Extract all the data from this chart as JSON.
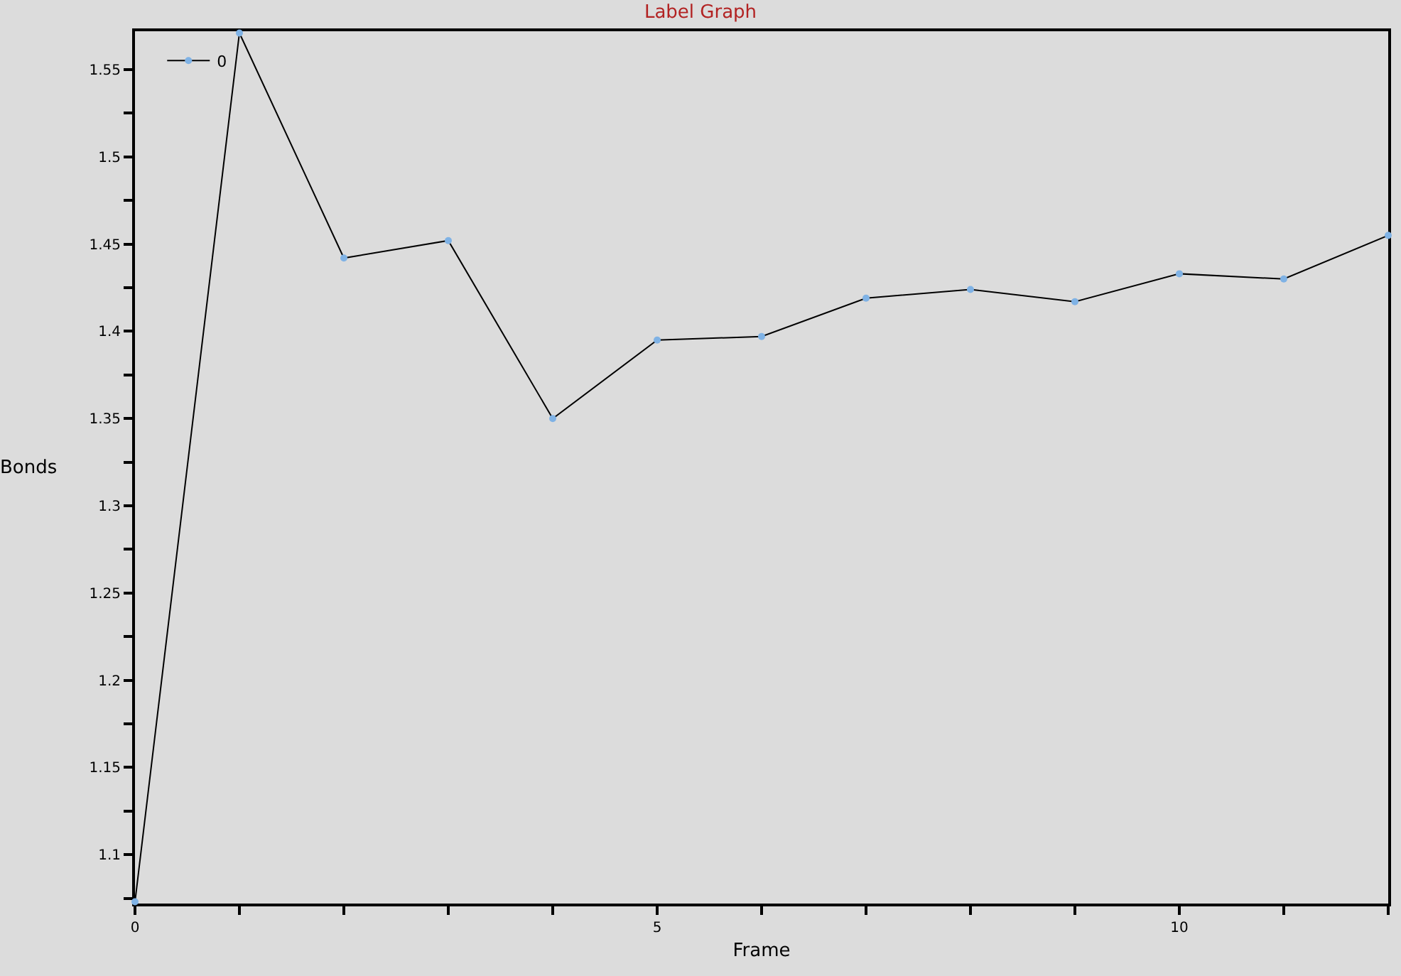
{
  "chart_data": {
    "type": "line",
    "title": "Label Graph",
    "xlabel": "Frame",
    "ylabel": "Bonds",
    "x": [
      0,
      1,
      2,
      3,
      4,
      5,
      6,
      7,
      8,
      9,
      10,
      11,
      12
    ],
    "series": [
      {
        "name": "0",
        "color": "#000000",
        "values": [
          1.073,
          1.571,
          1.442,
          1.452,
          1.35,
          1.395,
          1.397,
          1.419,
          1.424,
          1.417,
          1.433,
          1.43,
          1.455
        ]
      }
    ],
    "xlim": [
      0,
      12
    ],
    "xticks": [
      0,
      {
        "value": 1,
        "label": null
      },
      {
        "value": 2,
        "label": null
      },
      {
        "value": 3,
        "label": null
      },
      {
        "value": 4,
        "label": null
      },
      5,
      {
        "value": 6,
        "label": null
      },
      {
        "value": 7,
        "label": null
      },
      {
        "value": 8,
        "label": null
      },
      {
        "value": 9,
        "label": null
      },
      10,
      {
        "value": 11,
        "label": null
      },
      {
        "value": 12,
        "label": null
      }
    ],
    "ylim": [
      1.072,
      1.572
    ],
    "yticks": [
      {
        "value": 1.075,
        "label": null
      },
      1.1,
      {
        "value": 1.125,
        "label": null
      },
      1.15,
      {
        "value": 1.175,
        "label": null
      },
      1.2,
      {
        "value": 1.225,
        "label": null
      },
      1.25,
      {
        "value": 1.275,
        "label": null
      },
      1.3,
      {
        "value": 1.325,
        "label": null
      },
      1.35,
      {
        "value": 1.375,
        "label": null
      },
      1.4,
      {
        "value": 1.425,
        "label": null
      },
      1.45,
      {
        "value": 1.475,
        "label": null
      },
      1.5,
      {
        "value": 1.525,
        "label": null
      },
      1.55
    ],
    "grid": false,
    "legend": "top left",
    "marker": "circle",
    "line_style": "solid"
  }
}
